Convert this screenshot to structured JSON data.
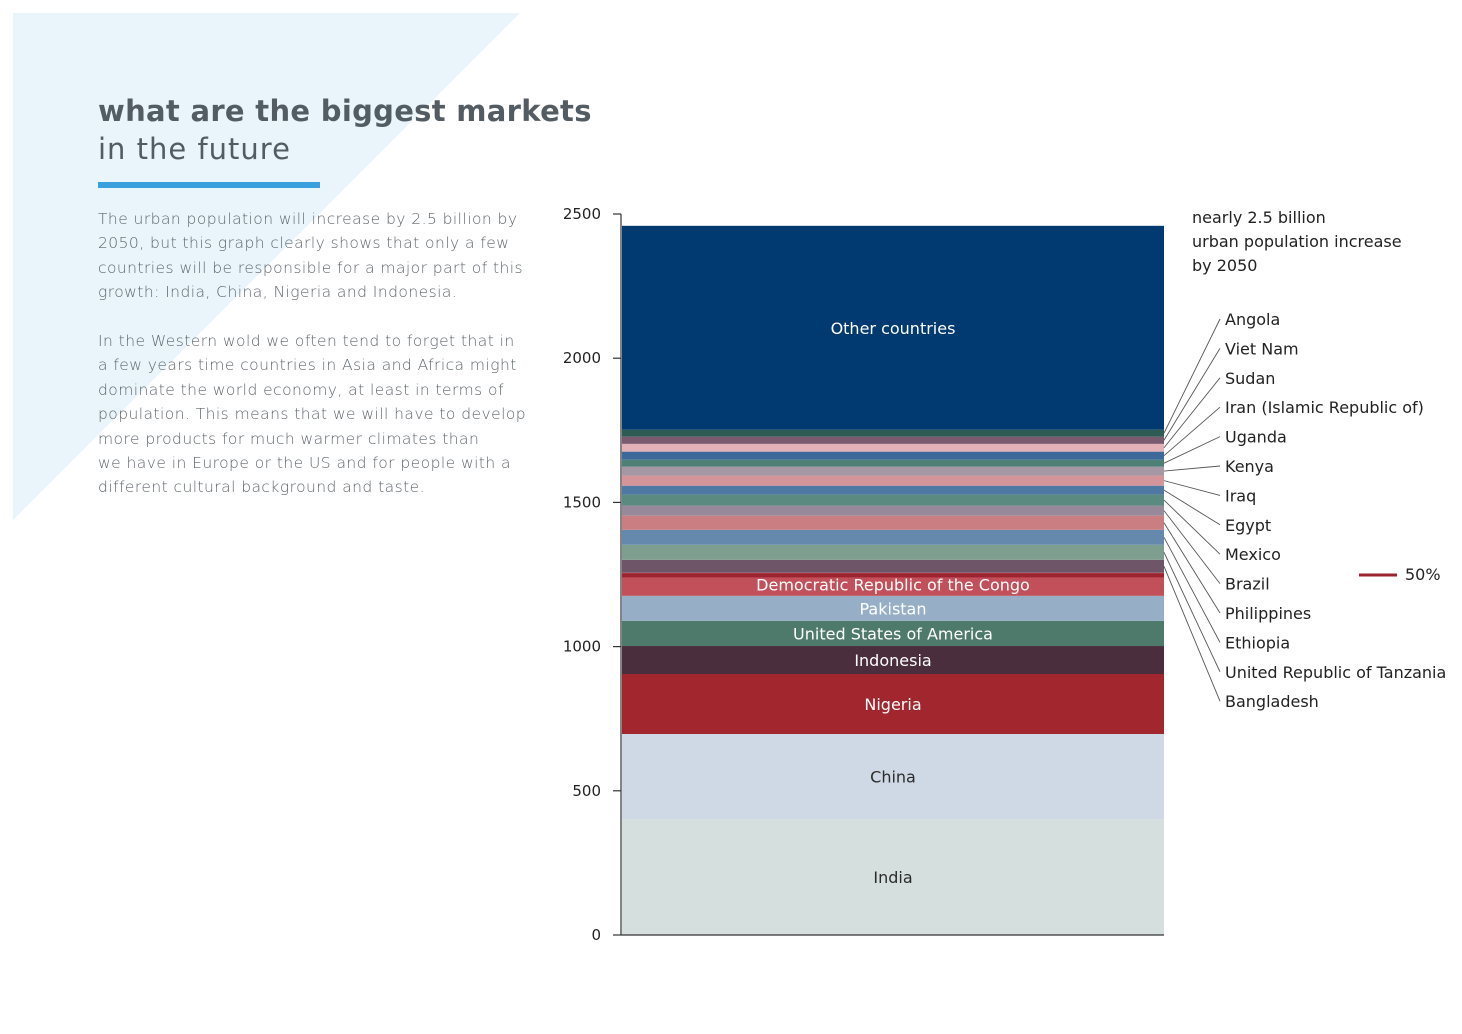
{
  "header": {
    "title_line1": "what are the biggest markets",
    "title_line2": "in the future",
    "accent_color": "#3aa0dd"
  },
  "body": {
    "paragraphs": [
      "The urban population will increase by 2.5 billion by\n2050, but this graph clearly shows that only a few\ncountries will be responsible for a major part of this\ngrowth: India, China, Nigeria and Indonesia.",
      "In the Western wold we often tend to forget that in\na few years time countries in Asia and Africa might\ndominate the world economy, at least in terms of\npopulation. This means that we will have to develop\nmore products for much warmer climates than\nwe have in Europe or the US and for people with a\ndifferent cultural background and taste."
    ]
  },
  "chart_data": {
    "type": "bar",
    "subtype": "single stacked bar",
    "title": "",
    "xlabel": "",
    "ylabel": "",
    "ylim": [
      0,
      2500
    ],
    "yticks": [
      0,
      500,
      1000,
      1500,
      2000,
      2500
    ],
    "annotation": [
      "nearly 2.5 billion",
      "urban population increase",
      "by 2050"
    ],
    "marker": {
      "label": "50%",
      "value_fraction": 0.5,
      "color": "#9b2430"
    },
    "units": "millions",
    "series": [
      {
        "name": "India",
        "value": 402,
        "color": "#d5e0de",
        "inline_label": true,
        "label_dark": true
      },
      {
        "name": "China",
        "value": 295,
        "color": "#cfd9e5",
        "inline_label": true,
        "label_dark": true
      },
      {
        "name": "Nigeria",
        "value": 208,
        "color": "#a1262d",
        "inline_label": true
      },
      {
        "name": "Indonesia",
        "value": 97,
        "color": "#4a2e3d",
        "inline_label": true
      },
      {
        "name": "United States of America",
        "value": 87,
        "color": "#4e7a6c",
        "inline_label": true
      },
      {
        "name": "Pakistan",
        "value": 87,
        "color": "#97afc6",
        "inline_label": true
      },
      {
        "name": "Democratic Republic of the Congo",
        "value": 80,
        "color": "#c1505a",
        "inline_label": true
      },
      {
        "name": "Bangladesh",
        "value": 45,
        "color": "#6e5567",
        "inline_label": false
      },
      {
        "name": "United Republic of Tanzania",
        "value": 52,
        "color": "#7e9e90",
        "inline_label": false
      },
      {
        "name": "Ethiopia",
        "value": 52,
        "color": "#6489ad",
        "inline_label": false
      },
      {
        "name": "Philippines",
        "value": 49,
        "color": "#cb7e81",
        "inline_label": false
      },
      {
        "name": "Brazil",
        "value": 35,
        "color": "#98899a",
        "inline_label": false
      },
      {
        "name": "Mexico",
        "value": 38,
        "color": "#5b8a80",
        "inline_label": false
      },
      {
        "name": "Egypt",
        "value": 31,
        "color": "#4f78a3",
        "inline_label": false
      },
      {
        "name": "Iraq",
        "value": 35,
        "color": "#d4959a",
        "inline_label": false
      },
      {
        "name": "Kenya",
        "value": 31,
        "color": "#a597a4",
        "inline_label": false
      },
      {
        "name": "Uganda",
        "value": 24,
        "color": "#4f8076",
        "inline_label": false
      },
      {
        "name": "Iran (Islamic Republic of)",
        "value": 28,
        "color": "#3c689a",
        "inline_label": false
      },
      {
        "name": "Sudan",
        "value": 27,
        "color": "#e3b2b8",
        "inline_label": false
      },
      {
        "name": "Viet Nam",
        "value": 25,
        "color": "#7a5a6e",
        "inline_label": false
      },
      {
        "name": "Angola",
        "value": 24,
        "color": "#2e5c55",
        "inline_label": false
      },
      {
        "name": "Other countries",
        "value": 707,
        "color": "#003a70",
        "inline_label": true
      }
    ],
    "callout_order": [
      "Angola",
      "Viet Nam",
      "Sudan",
      "Iran (Islamic Republic of)",
      "Uganda",
      "Kenya",
      "Iraq",
      "Egypt",
      "Mexico",
      "Brazil",
      "Philippines",
      "Ethiopia",
      "United Republic of Tanzania",
      "Bangladesh"
    ]
  }
}
